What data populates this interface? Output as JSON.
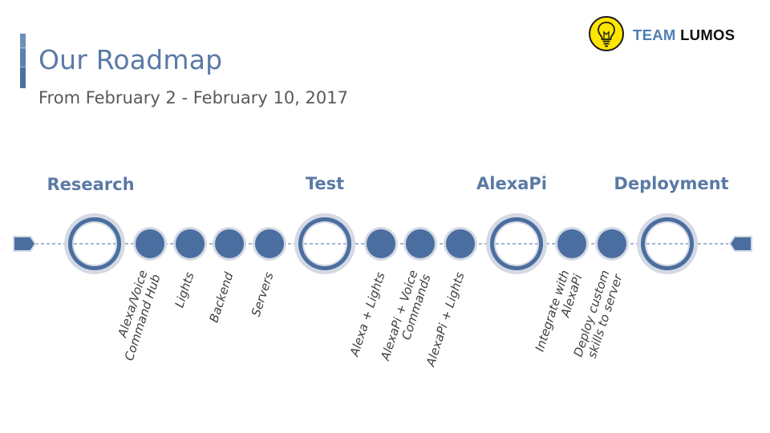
{
  "slide": {
    "title": "Our Roadmap",
    "subtitle": "From February 2 - February 10, 2017"
  },
  "logo": {
    "team": "TEAM",
    "name": "LUMOS",
    "icon": "lightbulb-icon",
    "team_color": "#4d7eb4",
    "name_color": "#111111",
    "badge_color": "#ffe600"
  },
  "colors": {
    "accent": "#5a7aa5",
    "node_fill": "#4a6ea0",
    "node_ring": "#d4d9e3",
    "milestone_ring": "#4a6ea0",
    "line": "#4a6ea0",
    "label_text": "#404040"
  },
  "timeline": {
    "phases": [
      {
        "label": "Research"
      },
      {
        "label": "Test"
      },
      {
        "label": "AlexaPi"
      },
      {
        "label": "Deployment"
      }
    ],
    "tasks": [
      {
        "lines": [
          "Alexa/Voice",
          "Command Hub"
        ]
      },
      {
        "lines": [
          "Lights"
        ]
      },
      {
        "lines": [
          "Backend"
        ]
      },
      {
        "lines": [
          "Servers"
        ]
      },
      {
        "lines": [
          "Alexa + Lights"
        ]
      },
      {
        "lines": [
          "AlexaPi + Voice",
          "Commands"
        ]
      },
      {
        "lines": [
          "AlexaPi + Lights"
        ]
      },
      {
        "lines": [
          "Integrate with",
          "AlexaPi"
        ]
      },
      {
        "lines": [
          "Deploy custom",
          "skills to server"
        ]
      }
    ]
  }
}
